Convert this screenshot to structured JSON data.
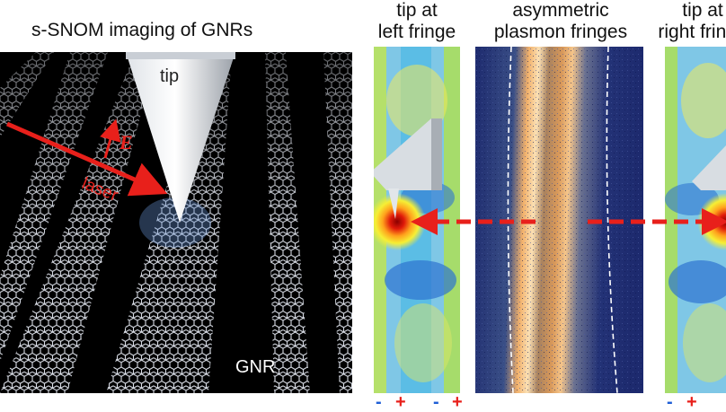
{
  "left_panel": {
    "title": "s-SNOM imaging of GNRs",
    "tip_label": "tip",
    "field_label": "E",
    "laser_label": "laser",
    "ribbon_label": "GNR"
  },
  "panel_a": {
    "title_line1": "tip at",
    "title_line2": "left fringe",
    "signs": [
      "-",
      "+",
      "-",
      "+"
    ]
  },
  "panel_b": {
    "title_line1": "asymmetric",
    "title_line2": "plasmon fringes"
  },
  "panel_c": {
    "title_line1": "tip at",
    "title_line2": "right fringe",
    "signs": [
      "-",
      "+"
    ]
  },
  "colors": {
    "arrow": "#e8201b",
    "substrate": "#000000",
    "fringe_bg": "#1d2a6e",
    "fringe_glow": "#f2b16b"
  }
}
